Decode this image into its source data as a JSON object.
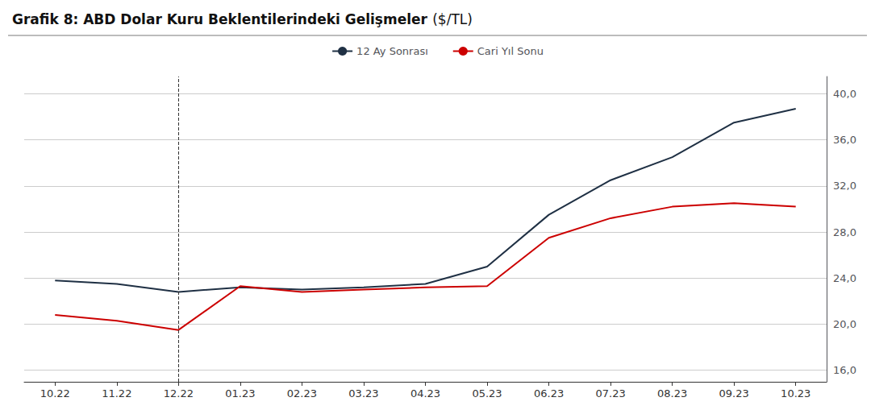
{
  "chart_data": {
    "type": "line",
    "title": "Grafik 8: ABD Dolar Kuru Beklentilerindeki Gelişmeler",
    "subtitle": "($/TL)",
    "categories": [
      "10.22",
      "11.22",
      "12.22",
      "01.23",
      "02.23",
      "03.23",
      "04.23",
      "05.23",
      "06.23",
      "07.23",
      "08.23",
      "09.23",
      "10.23"
    ],
    "series": [
      {
        "name": "12 Ay Sonrası",
        "color": "#1f3044",
        "values": [
          23.8,
          23.5,
          22.8,
          23.2,
          23.0,
          23.2,
          23.5,
          25.0,
          29.5,
          32.5,
          34.5,
          37.5,
          38.7
        ]
      },
      {
        "name": "Cari Yıl Sonu",
        "color": "#cc0000",
        "values": [
          20.8,
          20.3,
          19.5,
          23.3,
          22.8,
          23.0,
          23.2,
          23.3,
          27.5,
          29.2,
          30.2,
          30.5,
          30.2
        ]
      }
    ],
    "ylim": [
      15.0,
      41.5
    ],
    "yticks": [
      {
        "value": 16.0,
        "label": "16,0"
      },
      {
        "value": 20.0,
        "label": "20,0"
      },
      {
        "value": 24.0,
        "label": "24,0"
      },
      {
        "value": 28.0,
        "label": "28,0"
      },
      {
        "value": 32.0,
        "label": "32,0"
      },
      {
        "value": 36.0,
        "label": "36,0"
      },
      {
        "value": 40.0,
        "label": "40,0"
      }
    ],
    "grid": true,
    "legend": "top",
    "vline": {
      "x": "12.22",
      "line_style": "dashed"
    }
  }
}
